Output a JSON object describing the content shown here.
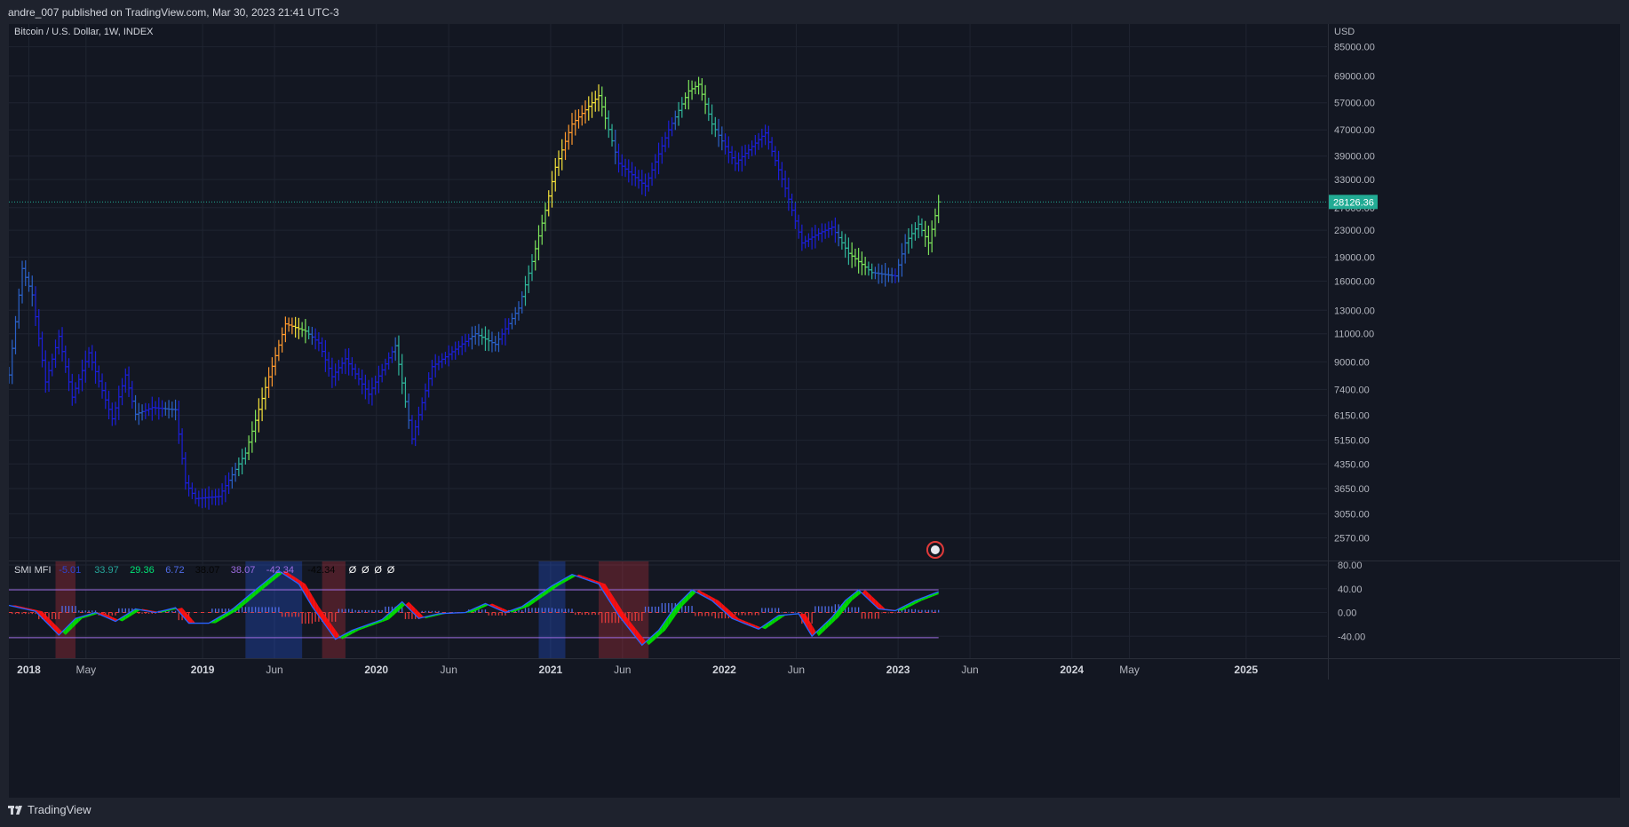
{
  "header": {
    "published": "andre_007 published on TradingView.com, Mar 30, 2023 21:41 UTC-3"
  },
  "footer": {
    "brand": "TradingView"
  },
  "colors": {
    "background": "#131722",
    "grid": "#1f2431",
    "axis_text": "#b2b5be",
    "price_label_bg": "#22ab94",
    "bar_primary": "#1c1fd8",
    "signal_band": "#9c6be0",
    "hist_positive": "#4f6ce8",
    "hist_negative": "#e03a3a",
    "ribbon_up": "#00e000",
    "ribbon_down": "#ff1010"
  },
  "chart_data": [
    {
      "type": "ohlc-bar",
      "title": "Bitcoin / U.S. Dollar, 1W, INDEX",
      "currency": "USD",
      "scale": "log",
      "ylim": [
        2300,
        95000
      ],
      "y_ticks": [
        "85000.00",
        "69000.00",
        "57000.00",
        "47000.00",
        "39000.00",
        "33000.00",
        "27000.00",
        "23000.00",
        "19000.00",
        "16000.00",
        "13000.00",
        "11000.00",
        "9000.00",
        "7400.00",
        "6150.00",
        "5150.00",
        "4350.00",
        "3650.00",
        "3050.00",
        "2570.00"
      ],
      "last_price": "28126.36",
      "x_ticks": [
        {
          "label": "2018",
          "date": "2018-01-01",
          "bold": true
        },
        {
          "label": "May",
          "date": "2018-05-01",
          "bold": false
        },
        {
          "label": "2019",
          "date": "2019-01-01",
          "bold": true
        },
        {
          "label": "Jun",
          "date": "2019-06-01",
          "bold": false
        },
        {
          "label": "2020",
          "date": "2020-01-01",
          "bold": true
        },
        {
          "label": "Jun",
          "date": "2020-06-01",
          "bold": false
        },
        {
          "label": "2021",
          "date": "2021-01-01",
          "bold": true
        },
        {
          "label": "Jun",
          "date": "2021-06-01",
          "bold": false
        },
        {
          "label": "2022",
          "date": "2022-01-01",
          "bold": true
        },
        {
          "label": "Jun",
          "date": "2022-06-01",
          "bold": false
        },
        {
          "label": "2023",
          "date": "2023-01-01",
          "bold": true
        },
        {
          "label": "Jun",
          "date": "2023-06-01",
          "bold": false
        },
        {
          "label": "2024",
          "date": "2024-01-01",
          "bold": true
        },
        {
          "label": "May",
          "date": "2024-05-01",
          "bold": false
        },
        {
          "label": "2025",
          "date": "2025-01-01",
          "bold": true
        }
      ],
      "x_range": [
        "2017-11-20",
        "2025-06-20"
      ],
      "price_path": [
        [
          "2017-11-20",
          8200
        ],
        [
          "2017-12-18",
          17500
        ],
        [
          "2018-01-08",
          14500
        ],
        [
          "2018-02-05",
          7800
        ],
        [
          "2018-03-05",
          10800
        ],
        [
          "2018-04-02",
          7000
        ],
        [
          "2018-05-07",
          9600
        ],
        [
          "2018-06-25",
          6000
        ],
        [
          "2018-07-23",
          8200
        ],
        [
          "2018-08-13",
          6200
        ],
        [
          "2018-09-17",
          6500
        ],
        [
          "2018-11-05",
          6400
        ],
        [
          "2018-11-26",
          3800
        ],
        [
          "2018-12-17",
          3400
        ],
        [
          "2019-02-04",
          3450
        ],
        [
          "2019-04-01",
          4700
        ],
        [
          "2019-05-13",
          7500
        ],
        [
          "2019-06-24",
          11800
        ],
        [
          "2019-08-05",
          11200
        ],
        [
          "2019-09-02",
          10300
        ],
        [
          "2019-09-30",
          8100
        ],
        [
          "2019-10-28",
          9200
        ],
        [
          "2019-12-16",
          7150
        ],
        [
          "2020-02-10",
          10100
        ],
        [
          "2020-03-16",
          5200
        ],
        [
          "2020-04-27",
          8700
        ],
        [
          "2020-06-01",
          9500
        ],
        [
          "2020-07-27",
          11000
        ],
        [
          "2020-09-07",
          10200
        ],
        [
          "2020-10-26",
          13200
        ],
        [
          "2020-11-23",
          18400
        ],
        [
          "2020-12-21",
          26500
        ],
        [
          "2021-01-11",
          36000
        ],
        [
          "2021-02-15",
          49000
        ],
        [
          "2021-04-12",
          60000
        ],
        [
          "2021-05-24",
          37000
        ],
        [
          "2021-07-19",
          31500
        ],
        [
          "2021-09-06",
          47000
        ],
        [
          "2021-10-18",
          62000
        ],
        [
          "2021-11-08",
          65000
        ],
        [
          "2021-12-06",
          49000
        ],
        [
          "2022-01-24",
          37000
        ],
        [
          "2022-03-28",
          46000
        ],
        [
          "2022-05-09",
          31000
        ],
        [
          "2022-06-13",
          21000
        ],
        [
          "2022-07-18",
          22500
        ],
        [
          "2022-08-15",
          23500
        ],
        [
          "2022-09-19",
          19500
        ],
        [
          "2022-11-07",
          17000
        ],
        [
          "2022-12-26",
          16600
        ],
        [
          "2023-01-16",
          21000
        ],
        [
          "2023-02-13",
          24000
        ],
        [
          "2023-03-06",
          21000
        ],
        [
          "2023-03-27",
          28126
        ]
      ]
    },
    {
      "type": "oscillator",
      "name": "SMI MFI",
      "legend_values": [
        {
          "text": "-5.01",
          "color": "#2c46d6"
        },
        {
          "text": "33.97",
          "color": "#26a69a"
        },
        {
          "text": "29.36",
          "color": "#00e676"
        },
        {
          "text": "6.72",
          "color": "#4f6ce8"
        },
        {
          "text": "38.07",
          "color": "#050505"
        },
        {
          "text": "38.07",
          "color": "#9c6be0"
        },
        {
          "text": "-42.34",
          "color": "#9c6be0"
        },
        {
          "text": "-42.34",
          "color": "#050505"
        },
        {
          "text": "Ø",
          "color": "#ffffff"
        },
        {
          "text": "Ø",
          "color": "#ffffff"
        },
        {
          "text": "Ø",
          "color": "#ffffff"
        },
        {
          "text": "Ø",
          "color": "#ffffff"
        }
      ],
      "ylim": [
        -77,
        86
      ],
      "y_ticks": [
        "80.00",
        "40.00",
        "0.00",
        "-40.00"
      ],
      "upper_band": 38.07,
      "lower_band": -42.34,
      "smi_path": [
        [
          "2017-11-20",
          12
        ],
        [
          "2018-01-15",
          2
        ],
        [
          "2018-03-05",
          -38
        ],
        [
          "2018-04-09",
          -10
        ],
        [
          "2018-05-21",
          0
        ],
        [
          "2018-07-02",
          -15
        ],
        [
          "2018-08-13",
          6
        ],
        [
          "2018-09-24",
          0
        ],
        [
          "2018-11-05",
          8
        ],
        [
          "2018-12-03",
          -18
        ],
        [
          "2019-01-14",
          -18
        ],
        [
          "2019-03-04",
          5
        ],
        [
          "2019-04-22",
          38
        ],
        [
          "2019-06-10",
          70
        ],
        [
          "2019-07-22",
          48
        ],
        [
          "2019-08-19",
          10
        ],
        [
          "2019-10-07",
          -45
        ],
        [
          "2019-11-11",
          -30
        ],
        [
          "2020-01-13",
          -12
        ],
        [
          "2020-02-24",
          18
        ],
        [
          "2020-03-30",
          -10
        ],
        [
          "2020-05-11",
          -2
        ],
        [
          "2020-07-06",
          0
        ],
        [
          "2020-08-17",
          15
        ],
        [
          "2020-09-28",
          0
        ],
        [
          "2020-11-02",
          10
        ],
        [
          "2021-01-04",
          45
        ],
        [
          "2021-02-15",
          64
        ],
        [
          "2021-04-12",
          48
        ],
        [
          "2021-05-24",
          -5
        ],
        [
          "2021-07-12",
          -55
        ],
        [
          "2021-08-16",
          -30
        ],
        [
          "2021-09-20",
          10
        ],
        [
          "2021-10-25",
          38
        ],
        [
          "2021-12-06",
          20
        ],
        [
          "2022-01-17",
          -10
        ],
        [
          "2022-03-14",
          -28
        ],
        [
          "2022-04-25",
          -5
        ],
        [
          "2022-06-06",
          -2
        ],
        [
          "2022-07-04",
          -40
        ],
        [
          "2022-08-15",
          -8
        ],
        [
          "2022-09-12",
          20
        ],
        [
          "2022-10-10",
          38
        ],
        [
          "2022-11-21",
          6
        ],
        [
          "2022-12-26",
          3
        ],
        [
          "2023-02-06",
          20
        ],
        [
          "2023-03-27",
          35
        ]
      ],
      "highlight_periods": [
        {
          "start": "2018-02-26",
          "end": "2018-04-09",
          "tone": "bearish"
        },
        {
          "start": "2019-04-01",
          "end": "2019-07-29",
          "tone": "bullish"
        },
        {
          "start": "2019-09-09",
          "end": "2019-10-28",
          "tone": "bearish"
        },
        {
          "start": "2020-12-07",
          "end": "2021-02-01",
          "tone": "bullish"
        },
        {
          "start": "2021-04-12",
          "end": "2021-07-26",
          "tone": "bearish"
        }
      ]
    }
  ]
}
